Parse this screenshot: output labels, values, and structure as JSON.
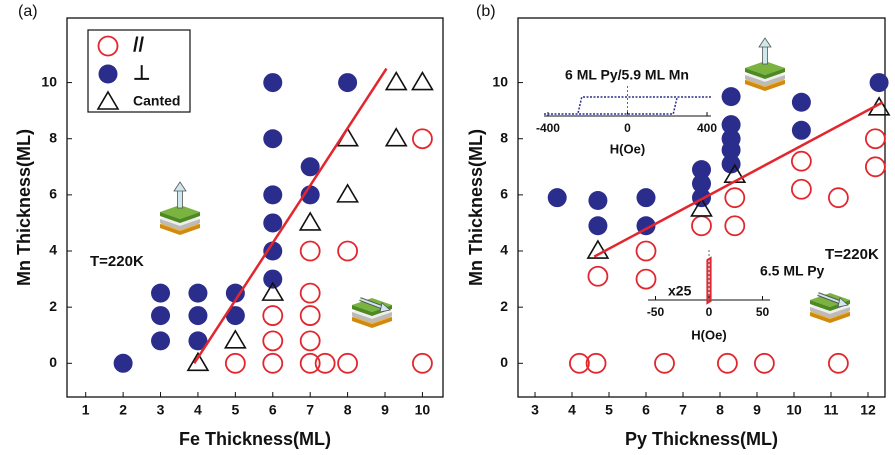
{
  "chart_data": [
    {
      "type": "scatter",
      "panel_label": "(a)",
      "xlabel": "Fe Thickness(ML)",
      "ylabel": "Mn Thickness(ML)",
      "xlim": [
        0.5,
        10.55
      ],
      "ylim": [
        -1.2,
        12.3
      ],
      "xticks": [
        1,
        2,
        3,
        4,
        5,
        6,
        7,
        8,
        9,
        10
      ],
      "yticks": [
        0,
        2,
        4,
        6,
        8,
        10
      ],
      "legend": "upper left",
      "annotations": [
        "T=220K"
      ],
      "series": [
        {
          "name": "//",
          "color": "#e3262e",
          "marker": "open-circle",
          "x": [
            5,
            6,
            6,
            6,
            7,
            7,
            7,
            7,
            7,
            7.4,
            8,
            8,
            10,
            10
          ],
          "values": [
            0,
            0,
            0.8,
            1.7,
            0,
            0.8,
            1.7,
            2.5,
            4,
            0,
            0,
            4,
            0,
            8
          ]
        },
        {
          "name": "⊥",
          "color": "#2b2d8c",
          "marker": "filled-circle",
          "x": [
            2,
            3,
            3,
            3,
            4,
            4,
            4,
            5,
            5,
            6,
            6,
            6,
            6,
            6,
            6,
            7,
            7,
            8
          ],
          "values": [
            0,
            0.8,
            1.7,
            2.5,
            0.8,
            1.7,
            2.5,
            1.7,
            2.5,
            3,
            4,
            5,
            6,
            8,
            10,
            6,
            7,
            10
          ]
        },
        {
          "name": "Canted",
          "color": "#111111",
          "marker": "open-triangle",
          "x": [
            4,
            5,
            6,
            7,
            8,
            8,
            9.3,
            9.3,
            10
          ],
          "values": [
            0,
            0.8,
            2.5,
            5,
            6,
            8,
            8,
            10,
            10
          ]
        },
        {
          "type": "line",
          "color": "#e3262e",
          "x": [
            3.9,
            9.04
          ],
          "values": [
            0,
            10.5
          ]
        }
      ]
    },
    {
      "type": "scatter",
      "panel_label": "(b)",
      "xlabel": "Py Thickness(ML)",
      "ylabel": "Mn Thickness(ML)",
      "xlim": [
        2.54,
        12.46
      ],
      "ylim": [
        -1.2,
        12.3
      ],
      "xticks": [
        3,
        4,
        5,
        6,
        7,
        8,
        9,
        10,
        11,
        12
      ],
      "yticks": [
        0,
        2,
        4,
        6,
        8,
        10
      ],
      "annotations": [
        "T=220K"
      ],
      "insets": [
        {
          "title": "6 ML Py/5.9 ML Mn",
          "xlabel": "H(Oe)",
          "xlim": [
            -420,
            420
          ],
          "xticks": [
            -400,
            0,
            400
          ]
        },
        {
          "title": "6.5 ML Py",
          "note": "x25",
          "xlabel": "H(Oe)",
          "xlim": [
            -57,
            57
          ],
          "xticks": [
            -50,
            0,
            50
          ]
        }
      ],
      "series": [
        {
          "name": "//",
          "color": "#e3262e",
          "marker": "open-circle",
          "x": [
            4.2,
            4.65,
            6.5,
            8.2,
            9.2,
            11.2,
            4.7,
            6.0,
            6.0,
            7.5,
            8.4,
            8.4,
            10.2,
            10.2,
            11.2,
            12.2,
            12.2
          ],
          "values": [
            0,
            0,
            0,
            0,
            0,
            0,
            3.1,
            3.0,
            4.0,
            4.9,
            4.9,
            5.9,
            6.2,
            7.2,
            5.9,
            7.0,
            8.0
          ]
        },
        {
          "name": "⊥",
          "color": "#2b2d8c",
          "marker": "filled-circle",
          "x": [
            3.6,
            4.7,
            4.7,
            6.0,
            6.0,
            7.5,
            7.5,
            7.5,
            8.3,
            8.3,
            8.3,
            8.3,
            8.3,
            10.2,
            10.2,
            12.3
          ],
          "values": [
            5.9,
            5.8,
            4.9,
            5.9,
            4.9,
            6.9,
            6.4,
            5.9,
            9.5,
            8.5,
            8.0,
            7.6,
            7.1,
            9.3,
            8.3,
            10.0
          ]
        },
        {
          "name": "Canted",
          "color": "#111111",
          "marker": "open-triangle",
          "x": [
            4.7,
            7.5,
            8.4,
            12.3
          ],
          "values": [
            4.0,
            5.5,
            6.7,
            9.1
          ]
        },
        {
          "type": "line",
          "color": "#e3262e",
          "x": [
            4.6,
            12.4
          ],
          "values": [
            3.8,
            9.3
          ]
        }
      ]
    }
  ]
}
